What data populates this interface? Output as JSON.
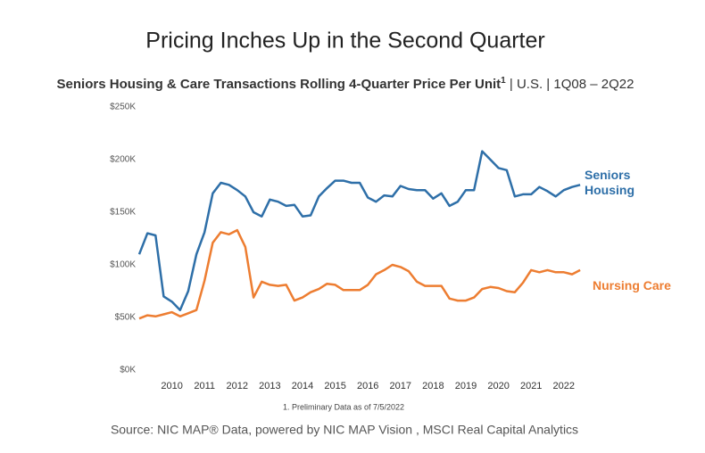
{
  "chart_data": {
    "type": "line",
    "title": "Pricing Inches Up in the Second Quarter",
    "subtitle_bold": "Seniors Housing & Care Transactions Rolling 4-Quarter Price Per Unit",
    "subtitle_sup": "1",
    "subtitle_rest": " | U.S. | 1Q08 – 2Q22",
    "footnote": "1. Preliminary Data as of 7/5/2022",
    "source": "Source: NIC MAP® Data, powered by NIC MAP Vision , MSCI Real Capital Analytics",
    "categories": [
      null,
      null,
      null,
      null,
      "2010",
      null,
      null,
      null,
      "2011",
      null,
      null,
      null,
      "2012",
      null,
      null,
      null,
      "2013",
      null,
      null,
      null,
      "2014",
      null,
      null,
      null,
      "2015",
      null,
      null,
      null,
      "2016",
      null,
      null,
      null,
      "2017",
      null,
      null,
      null,
      "2018",
      null,
      null,
      null,
      "2019",
      null,
      null,
      null,
      "2020",
      null,
      null,
      null,
      "2021",
      null,
      null,
      null,
      "2022",
      null,
      null
    ],
    "series": [
      {
        "name": "Seniors Housing",
        "color": "#2e6fa8",
        "values": [
          110,
          130,
          128,
          70,
          65,
          57,
          75,
          110,
          131,
          168,
          178,
          176,
          171,
          165,
          150,
          146,
          162,
          160,
          156,
          157,
          146,
          147,
          165,
          173,
          180,
          180,
          178,
          178,
          164,
          160,
          166,
          165,
          175,
          172,
          171,
          171,
          163,
          168,
          156,
          160,
          171,
          171,
          208,
          200,
          192,
          190,
          165,
          167,
          167,
          174,
          170,
          165,
          171,
          174,
          176
        ]
      },
      {
        "name": "Nursing Care",
        "color": "#ed7d31",
        "values": [
          49,
          52,
          51,
          53,
          55,
          51,
          54,
          57,
          85,
          121,
          131,
          129,
          133,
          117,
          69,
          84,
          81,
          80,
          81,
          66,
          69,
          74,
          77,
          82,
          81,
          76,
          76,
          76,
          81,
          91,
          95,
          100,
          98,
          94,
          84,
          80,
          80,
          80,
          68,
          66,
          66,
          69,
          77,
          79,
          78,
          75,
          74,
          83,
          95,
          93,
          95,
          93,
          93,
          91,
          95
        ]
      }
    ],
    "ylim": [
      0,
      250000
    ],
    "yticks": [
      {
        "value": 0,
        "label": "$0K"
      },
      {
        "value": 50000,
        "label": "$50K"
      },
      {
        "value": 100000,
        "label": "$100K"
      },
      {
        "value": 150000,
        "label": "$150K"
      },
      {
        "value": 200000,
        "label": "$200K"
      },
      {
        "value": 250000,
        "label": "$250K"
      }
    ],
    "value_unit": 1000,
    "grid": false
  }
}
